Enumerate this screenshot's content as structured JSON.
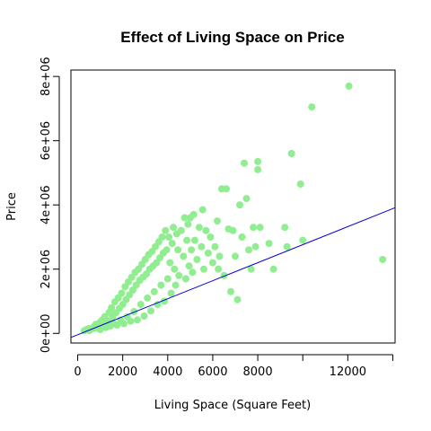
{
  "chart_data": {
    "type": "scatter",
    "title": "Effect of Living Space on Price",
    "xlabel": "Living Space (Square Feet)",
    "ylabel": "Price",
    "xlim": [
      -300,
      14100
    ],
    "ylim": [
      -300000,
      8200000
    ],
    "x_ticks": [
      {
        "value": 0,
        "label": "0"
      },
      {
        "value": 2000,
        "label": "2000"
      },
      {
        "value": 4000,
        "label": "4000"
      },
      {
        "value": 6000,
        "label": "6000"
      },
      {
        "value": 8000,
        "label": "8000"
      },
      {
        "value": 12000,
        "label": "12000"
      }
    ],
    "x_minor_ticks": [
      10000,
      14000
    ],
    "y_ticks": [
      {
        "value": 0,
        "label": "0e+00"
      },
      {
        "value": 2000000,
        "label": "2e+06"
      },
      {
        "value": 4000000,
        "label": "4e+06"
      },
      {
        "value": 6000000,
        "label": "6e+06"
      },
      {
        "value": 8000000,
        "label": "8e+06"
      }
    ],
    "grid": false,
    "point_color": "#90EE90",
    "line_color": "#0000CD",
    "fit_line": {
      "intercept": -43581,
      "slope": 280.6
    },
    "series": [
      {
        "points": [
          [
            290,
            80000
          ],
          [
            400,
            120000
          ],
          [
            500,
            150000
          ],
          [
            520,
            90000
          ],
          [
            700,
            150000
          ],
          [
            720,
            210000
          ],
          [
            800,
            280000
          ],
          [
            850,
            170000
          ],
          [
            1000,
            350000
          ],
          [
            1000,
            120000
          ],
          [
            1100,
            420000
          ],
          [
            1150,
            260000
          ],
          [
            1200,
            520000
          ],
          [
            1250,
            180000
          ],
          [
            1350,
            380000
          ],
          [
            1400,
            650000
          ],
          [
            1450,
            230000
          ],
          [
            1500,
            800000
          ],
          [
            1550,
            520000
          ],
          [
            1600,
            300000
          ],
          [
            1650,
            980000
          ],
          [
            1700,
            640000
          ],
          [
            1750,
            260000
          ],
          [
            1800,
            1100000
          ],
          [
            1850,
            780000
          ],
          [
            1900,
            420000
          ],
          [
            1950,
            1250000
          ],
          [
            2000,
            900000
          ],
          [
            2050,
            300000
          ],
          [
            2100,
            1450000
          ],
          [
            2150,
            1050000
          ],
          [
            2200,
            520000
          ],
          [
            2250,
            1600000
          ],
          [
            2300,
            1200000
          ],
          [
            2350,
            380000
          ],
          [
            2400,
            1750000
          ],
          [
            2450,
            1350000
          ],
          [
            2500,
            680000
          ],
          [
            2550,
            1900000
          ],
          [
            2600,
            1500000
          ],
          [
            2650,
            420000
          ],
          [
            2700,
            2000000
          ],
          [
            2750,
            1650000
          ],
          [
            2800,
            900000
          ],
          [
            2850,
            2150000
          ],
          [
            2900,
            1750000
          ],
          [
            2950,
            540000
          ],
          [
            3000,
            2300000
          ],
          [
            3050,
            1850000
          ],
          [
            3100,
            1100000
          ],
          [
            3150,
            2450000
          ],
          [
            3200,
            2000000
          ],
          [
            3250,
            700000
          ],
          [
            3300,
            2550000
          ],
          [
            3350,
            2100000
          ],
          [
            3400,
            1300000
          ],
          [
            3450,
            2700000
          ],
          [
            3500,
            2200000
          ],
          [
            3550,
            900000
          ],
          [
            3600,
            2850000
          ],
          [
            3650,
            2350000
          ],
          [
            3700,
            1500000
          ],
          [
            3750,
            3000000
          ],
          [
            3800,
            2500000
          ],
          [
            3850,
            1000000
          ],
          [
            3900,
            3200000
          ],
          [
            3950,
            2600000
          ],
          [
            4000,
            1700000
          ],
          [
            4050,
            3000000
          ],
          [
            4100,
            2200000
          ],
          [
            4150,
            1250000
          ],
          [
            4200,
            2800000
          ],
          [
            4250,
            3300000
          ],
          [
            4300,
            2000000
          ],
          [
            4350,
            1500000
          ],
          [
            4400,
            3100000
          ],
          [
            4450,
            2600000
          ],
          [
            4500,
            1800000
          ],
          [
            4600,
            3200000
          ],
          [
            4700,
            2400000
          ],
          [
            4750,
            3600000
          ],
          [
            4800,
            1700000
          ],
          [
            4850,
            2900000
          ],
          [
            4900,
            3400000
          ],
          [
            4950,
            2100000
          ],
          [
            5000,
            3600000
          ],
          [
            5050,
            2600000
          ],
          [
            5100,
            1900000
          ],
          [
            5150,
            3700000
          ],
          [
            5200,
            2900000
          ],
          [
            5300,
            2300000
          ],
          [
            5400,
            3300000
          ],
          [
            5500,
            2700000
          ],
          [
            5550,
            3850000
          ],
          [
            5600,
            2000000
          ],
          [
            5700,
            3200000
          ],
          [
            5800,
            2500000
          ],
          [
            5900,
            3000000
          ],
          [
            6000,
            2200000
          ],
          [
            6100,
            2700000
          ],
          [
            6200,
            3500000
          ],
          [
            6250,
            2000000
          ],
          [
            6300,
            2400000
          ],
          [
            6400,
            4500000
          ],
          [
            6500,
            1800000
          ],
          [
            6600,
            4500000
          ],
          [
            6700,
            3250000
          ],
          [
            6800,
            1300000
          ],
          [
            6900,
            3200000
          ],
          [
            7000,
            2400000
          ],
          [
            7100,
            1050000
          ],
          [
            7200,
            4000000
          ],
          [
            7300,
            3000000
          ],
          [
            7400,
            5300000
          ],
          [
            7500,
            4200000
          ],
          [
            7600,
            2600000
          ],
          [
            7700,
            2000000
          ],
          [
            7800,
            3300000
          ],
          [
            7900,
            2700000
          ],
          [
            8000,
            5350000
          ],
          [
            8000,
            5100000
          ],
          [
            8100,
            3300000
          ],
          [
            8500,
            2800000
          ],
          [
            8700,
            2000000
          ],
          [
            9200,
            3300000
          ],
          [
            9300,
            2700000
          ],
          [
            9500,
            5600000
          ],
          [
            9900,
            4650000
          ],
          [
            10000,
            2900000
          ],
          [
            10400,
            7050000
          ],
          [
            12050,
            7700000
          ],
          [
            13550,
            2300000
          ]
        ]
      }
    ]
  }
}
